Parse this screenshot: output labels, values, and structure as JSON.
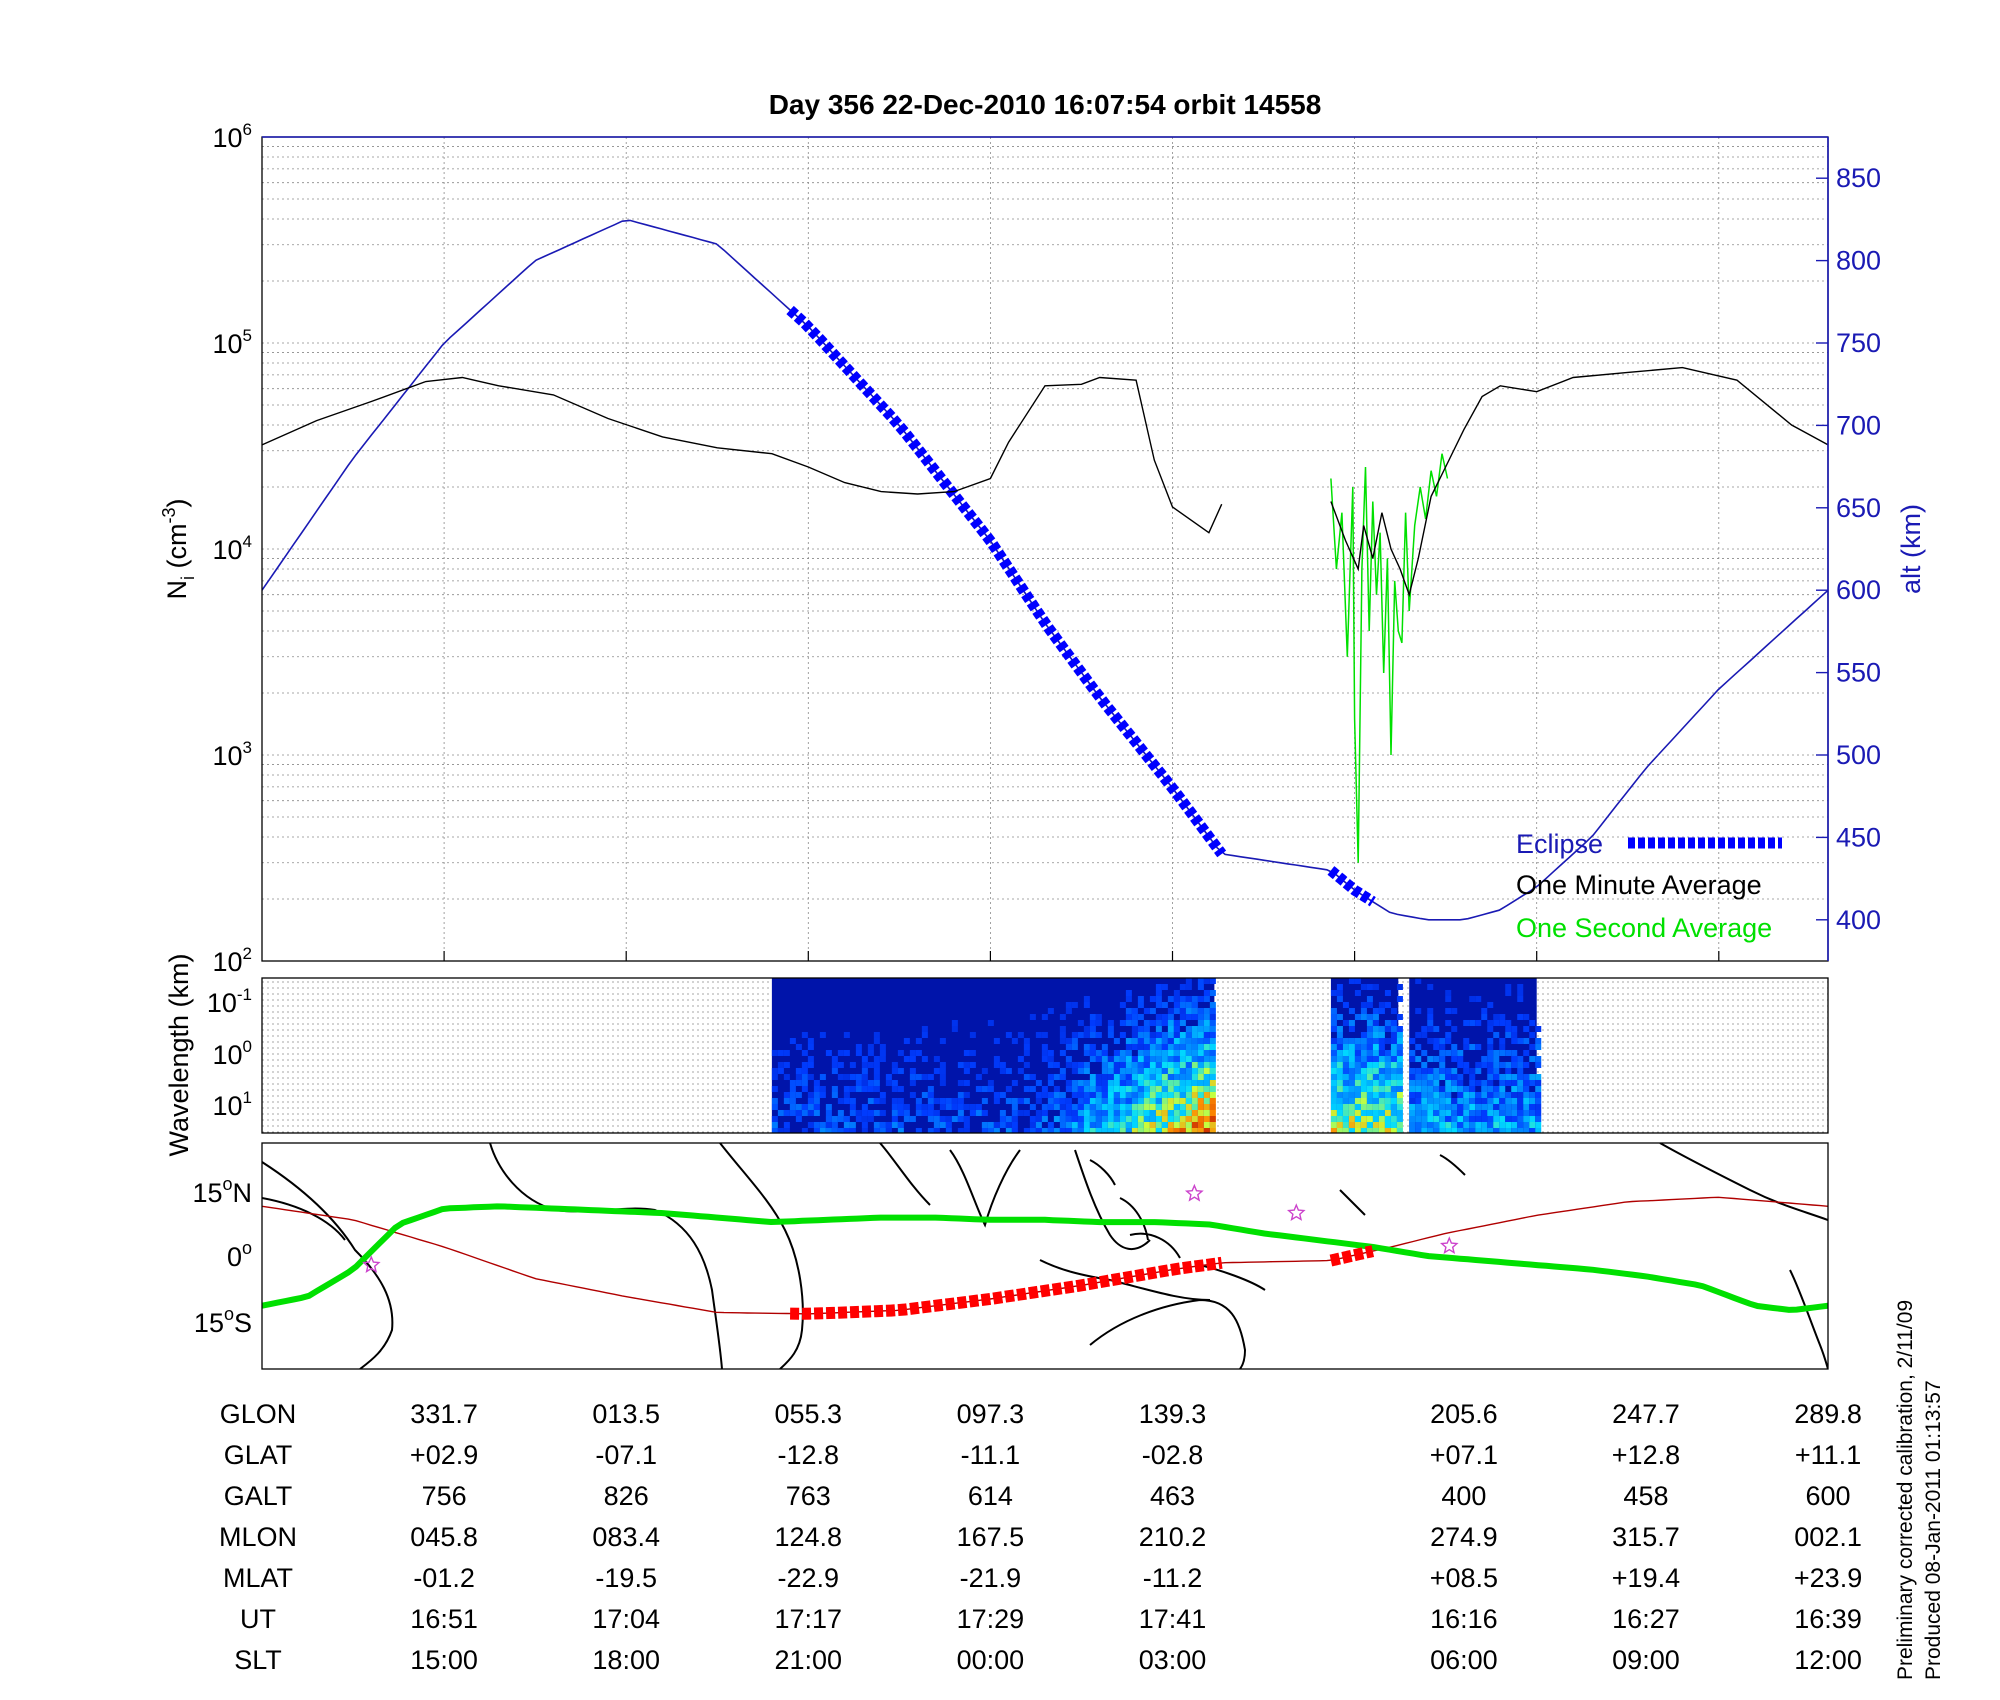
{
  "title": "Day 356  22-Dec-2010 16:07:54   orbit 14558",
  "colors": {
    "density_1min": "#000000",
    "density_1s": "#00e000",
    "altitude": "#1a1ab4",
    "eclipse": "#0000ff",
    "ground_track": "#00e000",
    "magnetic_equator": "#b00000",
    "eclipse_track": "#ff0000",
    "stars": "#cc44cc",
    "right_axis": "#1a1ab4"
  },
  "chart_data": [
    {
      "panel": "ion_density",
      "type": "line",
      "ylabel": "N",
      "ylabel_sub": "i",
      "ylabel_unit": "(cm",
      "ylabel_exp": "-3",
      "yscale": "log",
      "ylim": [
        100,
        1000000
      ],
      "y_ticks": [
        {
          "base": "10",
          "exp": "2"
        },
        {
          "base": "10",
          "exp": "3"
        },
        {
          "base": "10",
          "exp": "4"
        },
        {
          "base": "10",
          "exp": "5"
        },
        {
          "base": "10",
          "exp": "6"
        }
      ],
      "y2label": "alt (km)",
      "y2lim": [
        375,
        875
      ],
      "y2_ticks": [
        "400",
        "450",
        "500",
        "550",
        "600",
        "650",
        "700",
        "750",
        "800",
        "850"
      ],
      "x_index_range": [
        0,
        8.6
      ],
      "legend": {
        "position": "bottom-right",
        "entries": [
          "Eclipse",
          "One Minute Average",
          "One Second Average"
        ]
      },
      "grid": true,
      "series": [
        {
          "name": "One Minute Average",
          "x": [
            0,
            0.3,
            0.6,
            0.9,
            1.1,
            1.3,
            1.6,
            1.9,
            2.2,
            2.5,
            2.8,
            3.0,
            3.2,
            3.4,
            3.6,
            3.8,
            4.0,
            4.1,
            4.3,
            4.5,
            4.6,
            4.8,
            4.9,
            5.0,
            5.2,
            5.27
          ],
          "y": [
            32000,
            42000,
            52000,
            65000,
            68000,
            62000,
            56000,
            43000,
            35000,
            31000,
            29000,
            25000,
            21000,
            19000,
            18500,
            19000,
            22000,
            33000,
            62000,
            63000,
            68000,
            66000,
            27000,
            16000,
            12000,
            16500
          ]
        },
        {
          "name": "One Minute Average",
          "x": [
            5.87,
            5.95,
            6.02,
            6.05,
            6.1,
            6.15,
            6.2,
            6.25,
            6.3,
            6.35,
            6.42,
            6.5,
            6.6,
            6.7,
            6.8,
            7.0,
            7.2,
            7.5,
            7.8,
            8.1,
            8.4,
            8.6
          ],
          "y": [
            17000,
            11000,
            8000,
            13000,
            9000,
            15000,
            10000,
            8000,
            6000,
            9000,
            18000,
            25000,
            38000,
            55000,
            62000,
            58000,
            68000,
            72000,
            76000,
            66000,
            40000,
            32000
          ]
        },
        {
          "name": "One Second Average",
          "x": [
            5.87,
            5.9,
            5.93,
            5.96,
            5.99,
            6.0,
            6.02,
            6.04,
            6.06,
            6.08,
            6.1,
            6.12,
            6.14,
            6.16,
            6.18,
            6.2,
            6.22,
            6.24,
            6.26,
            6.28,
            6.3,
            6.33,
            6.36,
            6.39,
            6.42,
            6.45,
            6.48,
            6.51
          ],
          "y": [
            22000,
            8000,
            15000,
            3000,
            20000,
            1500,
            300,
            8000,
            25000,
            4000,
            17000,
            6000,
            12000,
            2500,
            9000,
            1000,
            7000,
            4000,
            3500,
            15000,
            5000,
            13000,
            20000,
            14000,
            24000,
            18000,
            29000,
            22000
          ]
        },
        {
          "name": "altitude",
          "axis": "right",
          "x": [
            0,
            0.5,
            1.0,
            1.5,
            2.0,
            2.5,
            3.0,
            3.5,
            4.0,
            4.3,
            4.6,
            5.0,
            5.27,
            5.87,
            6.0,
            6.2,
            6.4,
            6.6,
            6.8,
            7.0,
            7.3,
            7.6,
            8.0,
            8.3,
            8.6
          ],
          "y": [
            600,
            680,
            750,
            800,
            825,
            810,
            760,
            700,
            630,
            580,
            535,
            480,
            440,
            430,
            418,
            404,
            400,
            400,
            406,
            420,
            450,
            492,
            540,
            570,
            600
          ]
        }
      ],
      "eclipse_segments": [
        {
          "x": [
            2.9,
            5.27
          ]
        },
        {
          "x": [
            5.87,
            6.1
          ]
        }
      ]
    },
    {
      "panel": "wavelength_spectrogram",
      "type": "heatmap",
      "ylabel": "Wavelength (km)",
      "yscale": "log",
      "y_ticks": [
        {
          "base": "10",
          "exp": "-1"
        },
        {
          "base": "10",
          "exp": "0"
        },
        {
          "base": "10",
          "exp": "1"
        }
      ],
      "data_blocks": [
        {
          "x": [
            2.8,
            5.23
          ]
        },
        {
          "x": [
            5.87,
            6.24
          ]
        },
        {
          "x": [
            6.3,
            7.0
          ]
        }
      ]
    },
    {
      "panel": "map",
      "type": "line",
      "y_ticks": [
        {
          "value": "15",
          "unit": "N"
        },
        {
          "value": "0",
          "unit": ""
        },
        {
          "value": "15",
          "unit": "S"
        }
      ],
      "ylim": [
        -25,
        25
      ],
      "series": [
        {
          "name": "ground_track",
          "x": [
            0,
            0.25,
            0.5,
            0.75,
            1.0,
            1.3,
            1.6,
            1.9,
            2.2,
            2.5,
            2.8,
            3.1,
            3.4,
            3.7,
            4.0,
            4.3,
            4.6,
            4.9,
            5.2,
            5.5,
            5.8,
            6.1,
            6.4,
            6.7,
            7.0,
            7.3,
            7.6,
            7.9,
            8.2,
            8.4,
            8.6
          ],
          "y": [
            -11,
            -9,
            -3,
            7,
            10.5,
            11,
            10.5,
            10,
            9.5,
            8.5,
            7.5,
            8,
            8.5,
            8.5,
            8,
            8,
            7.5,
            7.5,
            7,
            5,
            3.5,
            2,
            0,
            -1,
            -2,
            -3,
            -4.5,
            -6.5,
            -11,
            -12,
            -11
          ]
        },
        {
          "name": "magnetic_equator",
          "x": [
            0,
            0.5,
            1.0,
            1.5,
            2.0,
            2.5,
            3.0,
            3.5,
            4.0,
            4.5,
            5.0,
            5.27,
            5.87,
            6.2,
            6.5,
            7.0,
            7.5,
            8.0,
            8.3,
            8.6
          ],
          "y": [
            11,
            8,
            2,
            -5,
            -9,
            -12.5,
            -12.8,
            -12,
            -9.5,
            -6.5,
            -3,
            -1.5,
            -1,
            2,
            5,
            9,
            12,
            13,
            12,
            11
          ]
        }
      ],
      "eclipse_segments": [
        {
          "x": [
            2.9,
            5.27
          ]
        },
        {
          "x": [
            5.87,
            6.1
          ]
        }
      ],
      "stars": [
        {
          "x": 0.6,
          "y": -2
        },
        {
          "x": 5.12,
          "y": 13.8
        },
        {
          "x": 5.68,
          "y": 9.5
        },
        {
          "x": 6.52,
          "y": 2.2
        }
      ]
    }
  ],
  "table": {
    "labels": [
      "GLON",
      "GLAT",
      "GALT",
      "MLON",
      "MLAT",
      "UT",
      "SLT"
    ],
    "columns": [
      [
        "331.7",
        "+02.9",
        "756",
        "045.8",
        "-01.2",
        "16:51",
        "15:00"
      ],
      [
        "013.5",
        "-07.1",
        "826",
        "083.4",
        "-19.5",
        "17:04",
        "18:00"
      ],
      [
        "055.3",
        "-12.8",
        "763",
        "124.8",
        "-22.9",
        "17:17",
        "21:00"
      ],
      [
        "097.3",
        "-11.1",
        "614",
        "167.5",
        "-21.9",
        "17:29",
        "00:00"
      ],
      [
        "139.3",
        "-02.8",
        "463",
        "210.2",
        "-11.2",
        "17:41",
        "03:00"
      ],
      [
        "205.6",
        "+07.1",
        "400",
        "274.9",
        "+08.5",
        "16:16",
        "06:00"
      ],
      [
        "247.7",
        "+12.8",
        "458",
        "315.7",
        "+19.4",
        "16:27",
        "09:00"
      ],
      [
        "289.8",
        "+11.1",
        "600",
        "002.1",
        "+23.9",
        "16:39",
        "12:00"
      ]
    ],
    "column_x_index": [
      1,
      2,
      3,
      4,
      5,
      6.6,
      7.6,
      8.6
    ]
  },
  "footer_notes": [
    "Preliminary corrected calibration, 2/11/09",
    "Produced 08-Jan-2011 01:13:57"
  ]
}
